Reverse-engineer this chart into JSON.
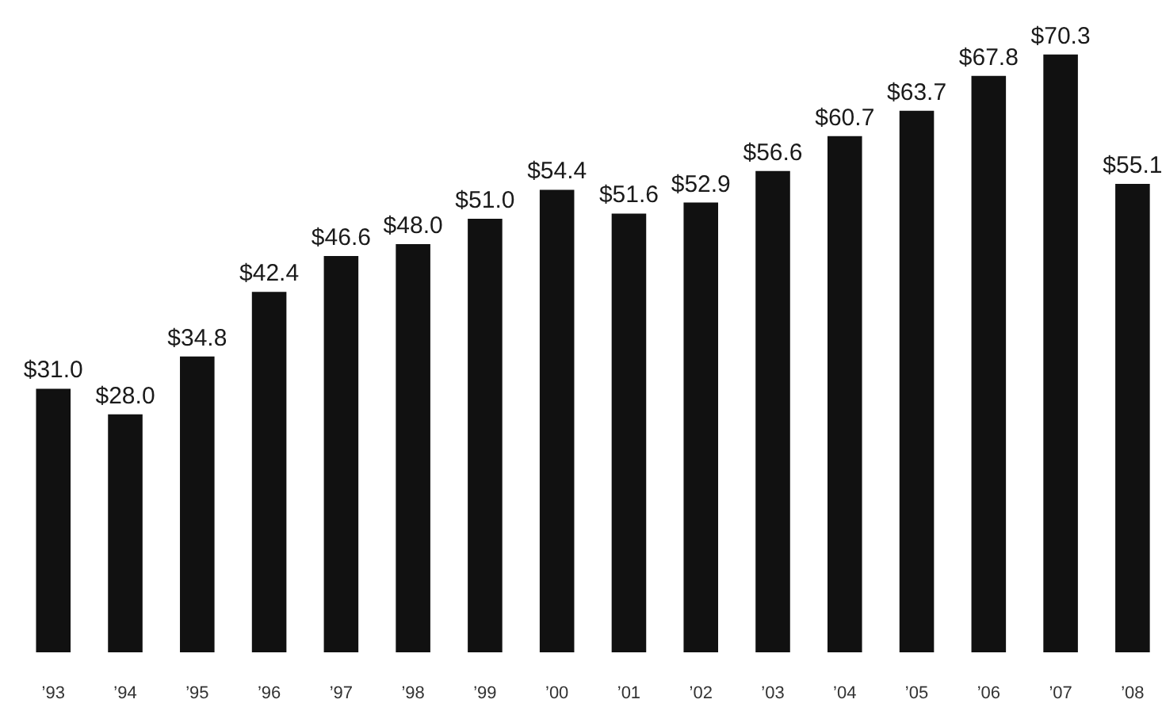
{
  "chart_data": {
    "type": "bar",
    "categories": [
      "’93",
      "’94",
      "’95",
      "’96",
      "’97",
      "’98",
      "’99",
      "’00",
      "’01",
      "’02",
      "’03",
      "’04",
      "’05",
      "’06",
      "’07",
      "’08"
    ],
    "values": [
      31.0,
      28.0,
      34.8,
      42.4,
      46.6,
      48.0,
      51.0,
      54.4,
      51.6,
      52.9,
      56.6,
      60.7,
      63.7,
      67.8,
      70.3,
      55.1
    ],
    "value_labels": [
      "$31.0",
      "$28.0",
      "$34.8",
      "$42.4",
      "$46.6",
      "$48.0",
      "$51.0",
      "$54.4",
      "$51.6",
      "$52.9",
      "$56.6",
      "$60.7",
      "$63.7",
      "$67.8",
      "$70.3",
      "$55.1"
    ],
    "color": "#111111"
  }
}
